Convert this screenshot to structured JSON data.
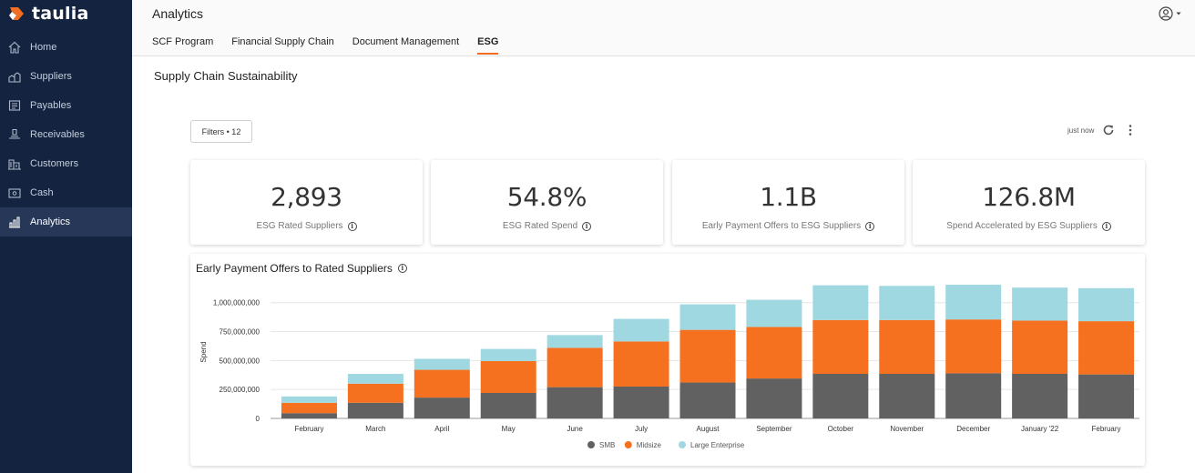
{
  "brand": {
    "name": "taulia"
  },
  "sidebar": {
    "items": [
      {
        "label": "Home",
        "icon": "home-icon"
      },
      {
        "label": "Suppliers",
        "icon": "suppliers-icon"
      },
      {
        "label": "Payables",
        "icon": "payables-icon"
      },
      {
        "label": "Receivables",
        "icon": "receivables-icon"
      },
      {
        "label": "Customers",
        "icon": "customers-icon"
      },
      {
        "label": "Cash",
        "icon": "cash-icon"
      },
      {
        "label": "Analytics",
        "icon": "analytics-icon",
        "active": true
      }
    ]
  },
  "header": {
    "title": "Analytics",
    "tabs": [
      {
        "label": "SCF Program"
      },
      {
        "label": "Financial Supply Chain"
      },
      {
        "label": "Document Management"
      },
      {
        "label": "ESG",
        "active": true
      }
    ]
  },
  "page": {
    "section_title": "Supply Chain Sustainability",
    "filters_label": "Filters • 12",
    "refresh_text": "just now"
  },
  "kpis": [
    {
      "value": "2,893",
      "label": "ESG Rated Suppliers"
    },
    {
      "value": "54.8%",
      "label": "ESG Rated Spend"
    },
    {
      "value": "1.1B",
      "label": "Early Payment Offers to ESG Suppliers"
    },
    {
      "value": "126.8M",
      "label": "Spend Accelerated by ESG Suppliers"
    }
  ],
  "colors": {
    "smb": "#616161",
    "midsize": "#f5711f",
    "large": "#9fd8e0",
    "accent": "#f06d22",
    "sidebar": "#14233f"
  },
  "chart_data": {
    "type": "bar",
    "stacked": true,
    "title": "Early Payment Offers to Rated Suppliers",
    "xlabel": "",
    "ylabel": "Spend",
    "ylim": [
      0,
      1100000000
    ],
    "yticks": [
      0,
      250000000,
      500000000,
      750000000,
      1000000000
    ],
    "ytick_labels": [
      "0",
      "250,000,000",
      "500,000,000",
      "750,000,000",
      "1,000,000,000"
    ],
    "categories": [
      "February",
      "March",
      "April",
      "May",
      "June",
      "July",
      "August",
      "September",
      "October",
      "November",
      "December",
      "January '22",
      "February"
    ],
    "series": [
      {
        "name": "SMB",
        "color": "#616161",
        "values": [
          45000000,
          135000000,
          180000000,
          220000000,
          270000000,
          275000000,
          310000000,
          345000000,
          385000000,
          385000000,
          390000000,
          385000000,
          380000000
        ]
      },
      {
        "name": "Midsize",
        "color": "#f5711f",
        "values": [
          90000000,
          165000000,
          240000000,
          275000000,
          340000000,
          390000000,
          455000000,
          445000000,
          465000000,
          465000000,
          465000000,
          460000000,
          460000000
        ]
      },
      {
        "name": "Large Enterprise",
        "color": "#9fd8e0",
        "values": [
          55000000,
          85000000,
          95000000,
          105000000,
          110000000,
          195000000,
          220000000,
          235000000,
          300000000,
          295000000,
          300000000,
          285000000,
          285000000
        ]
      }
    ],
    "legend": "bottom-center",
    "grid": true
  }
}
